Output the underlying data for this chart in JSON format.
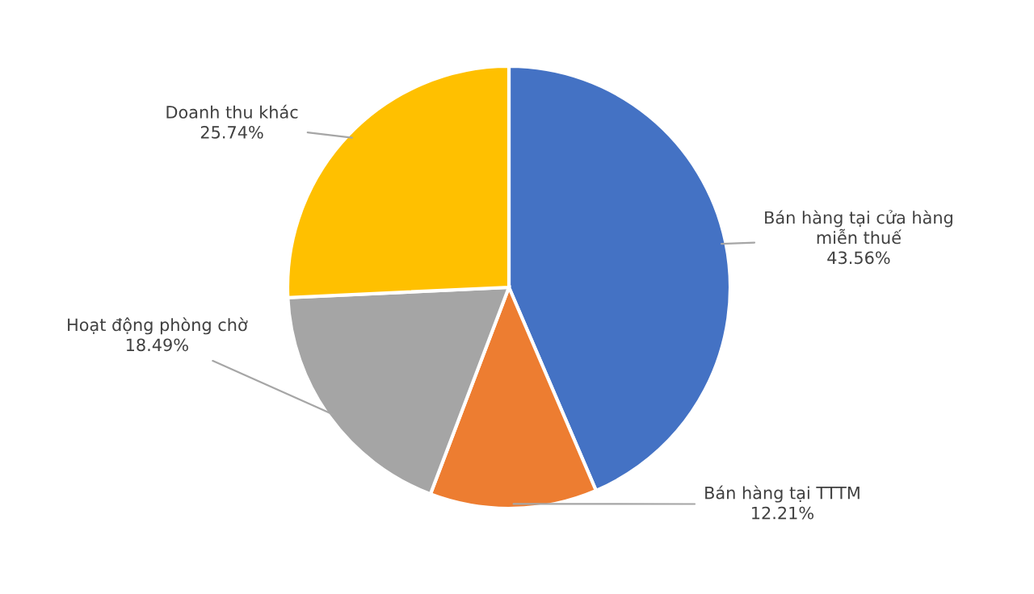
{
  "chart_data": {
    "type": "pie",
    "categories": [
      "Bán hàng tại cửa hàng\nmiễn thuế",
      "Bán hàng tại TTTM",
      "Hoạt động phòng chờ",
      "Doanh thu khác"
    ],
    "values": [
      43.56,
      12.21,
      18.49,
      25.74
    ],
    "colors": [
      "#4472c4",
      "#ed7d31",
      "#a5a5a5",
      "#ffc000"
    ],
    "value_labels": [
      "43.56%",
      "12.21%",
      "18.49%",
      "25.74%"
    ]
  }
}
